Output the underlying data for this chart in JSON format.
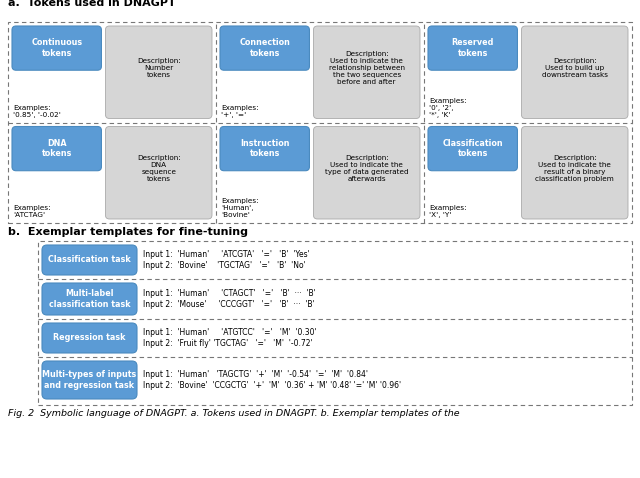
{
  "fig_width": 6.4,
  "fig_height": 4.78,
  "dpi": 100,
  "bg_color": "#ffffff",
  "blue_color": "#5b9bd5",
  "light_gray": "#d6d6d6",
  "section_a_title": "a.  Tokens used in DNAGPT",
  "section_b_title": "b.  Exemplar templates for fine-tuning",
  "caption": "Fig. 2  Symbolic language of DNAGPT. a. Tokens used in DNAGPT. b. Exemplar templates of the",
  "tokens": [
    {
      "label": "DNA\ntokens",
      "desc": "Description:\nDNA\nsequence\ntokens",
      "examples": "Examples:\n'ATCTAG'"
    },
    {
      "label": "Instruction\ntokens",
      "desc": "Description:\nUsed to indicate the\ntype of data generated\nafterwards",
      "examples": "Examples:\n'Human',\n'Bovine'"
    },
    {
      "label": "Classification\ntokens",
      "desc": "Description:\nUsed to indicate the\nresult of a binary\nclassification problem",
      "examples": "Examples:\n'X', 'Y'"
    },
    {
      "label": "Continuous\ntokens",
      "desc": "Description:\nNumber\ntokens",
      "examples": "Examples:\n'0.85', '-0.02'"
    },
    {
      "label": "Connection\ntokens",
      "desc": "Description:\nUsed to indicate the\nrelationship between\nthe two sequences\nbefore and after",
      "examples": "Examples:\n'+', '='"
    },
    {
      "label": "Reserved\ntokens",
      "desc": "Description:\nUsed to build up\ndownstream tasks",
      "examples": "Examples:\n'0', '2',\n'*', 'K'"
    }
  ],
  "tasks": [
    {
      "label": "Classification task",
      "line1": "Input 1:  'Human'     'ATCGTA'   '='   'B'  'Yes'",
      "line2": "Input 2:  'Bovine'    'TGCTAG'   '='   'B'  'No'"
    },
    {
      "label": "Multi-label\nclassification task",
      "line1": "Input 1:  'Human'     'CTAGCT'   '='   'B'  ···  'B'",
      "line2": "Input 2:  'Mouse'     'CCCGGT'   '='   'B'  ···  'B'"
    },
    {
      "label": "Regression task",
      "line1": "Input 1:  'Human'     'ATGTCC'   '='   'M'  '0.30'",
      "line2": "Input 2:  'Fruit fly' 'TGCTAG'   '='   'M'  '-0.72'"
    },
    {
      "label": "Multi-types of inputs\nand regression task",
      "line1": "Input 1:  'Human'   'TAGCTG'  '+'  'M'  '-0.54'  '='  'M'  '0.84'",
      "line2": "Input 2:  'Bovine'  'CCGCTG'  '+'  'M'  '0.36' + 'M' '0.48' '=' 'M' '0.96'"
    }
  ]
}
